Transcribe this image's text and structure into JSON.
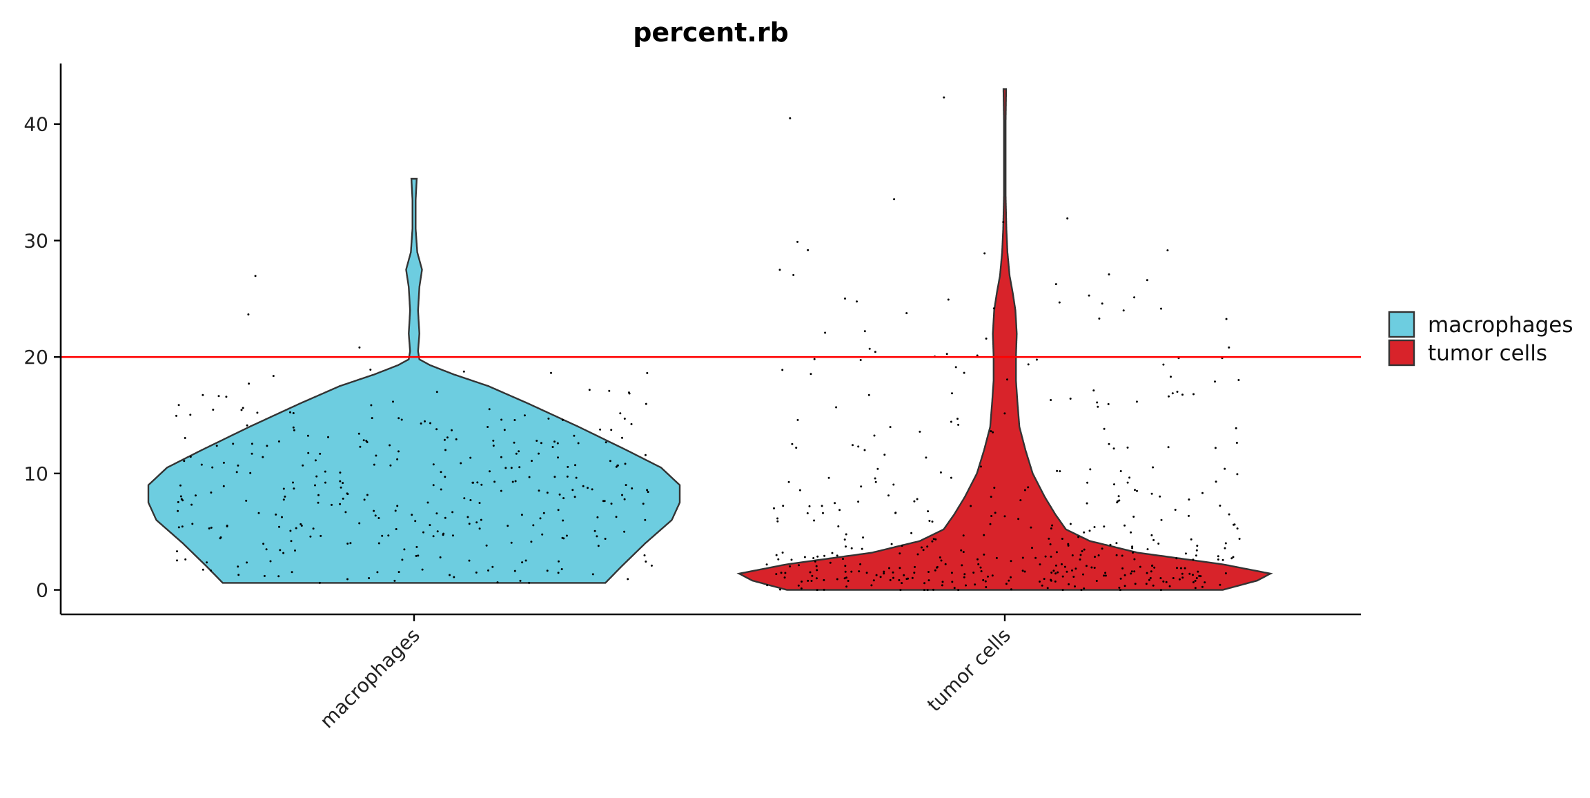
{
  "chart_data": {
    "type": "violin",
    "title": "percent.rb",
    "xlabel": "",
    "ylabel": "",
    "categories": [
      "macrophages",
      "tumor cells"
    ],
    "ylim": [
      -2.1,
      45.2
    ],
    "yticks": [
      0,
      10,
      20,
      30,
      40
    ],
    "grid": false,
    "reference_line": {
      "y": 20,
      "color": "#ff0000"
    },
    "legend": {
      "position": "right",
      "entries": [
        "macrophages",
        "tumor cells"
      ]
    },
    "series": [
      {
        "name": "macrophages",
        "color": "#6dcde0",
        "min": 0.6,
        "max": 35.3,
        "n_points": 320,
        "profile": [
          [
            0.6,
            0.72
          ],
          [
            2.0,
            0.78
          ],
          [
            4.0,
            0.87
          ],
          [
            6.0,
            0.97
          ],
          [
            7.5,
            1.0
          ],
          [
            9.0,
            1.0
          ],
          [
            10.5,
            0.93
          ],
          [
            12.0,
            0.8
          ],
          [
            14.0,
            0.62
          ],
          [
            16.0,
            0.43
          ],
          [
            17.5,
            0.28
          ],
          [
            18.5,
            0.15
          ],
          [
            19.3,
            0.06
          ],
          [
            19.8,
            0.02
          ],
          [
            20.5,
            0.015
          ],
          [
            22.0,
            0.02
          ],
          [
            24.0,
            0.015
          ],
          [
            26.0,
            0.02
          ],
          [
            27.5,
            0.03
          ],
          [
            29.0,
            0.012
          ],
          [
            31.0,
            0.006
          ],
          [
            33.5,
            0.006
          ],
          [
            35.3,
            0.01
          ]
        ]
      },
      {
        "name": "tumor cells",
        "color": "#d8232a",
        "min": 0.0,
        "max": 43.0,
        "n_points": 430,
        "profile": [
          [
            0.0,
            0.82
          ],
          [
            0.8,
            0.95
          ],
          [
            1.4,
            1.0
          ],
          [
            2.2,
            0.82
          ],
          [
            3.2,
            0.5
          ],
          [
            4.2,
            0.32
          ],
          [
            5.2,
            0.23
          ],
          [
            6.5,
            0.19
          ],
          [
            8.0,
            0.15
          ],
          [
            10.0,
            0.105
          ],
          [
            12.0,
            0.078
          ],
          [
            14.0,
            0.055
          ],
          [
            16.0,
            0.048
          ],
          [
            18.0,
            0.042
          ],
          [
            20.0,
            0.042
          ],
          [
            22.0,
            0.045
          ],
          [
            24.0,
            0.04
          ],
          [
            25.5,
            0.03
          ],
          [
            27.0,
            0.018
          ],
          [
            29.0,
            0.01
          ],
          [
            31.0,
            0.006
          ],
          [
            34.0,
            0.003
          ],
          [
            40.0,
            0.003
          ],
          [
            43.0,
            0.005
          ]
        ]
      }
    ]
  }
}
